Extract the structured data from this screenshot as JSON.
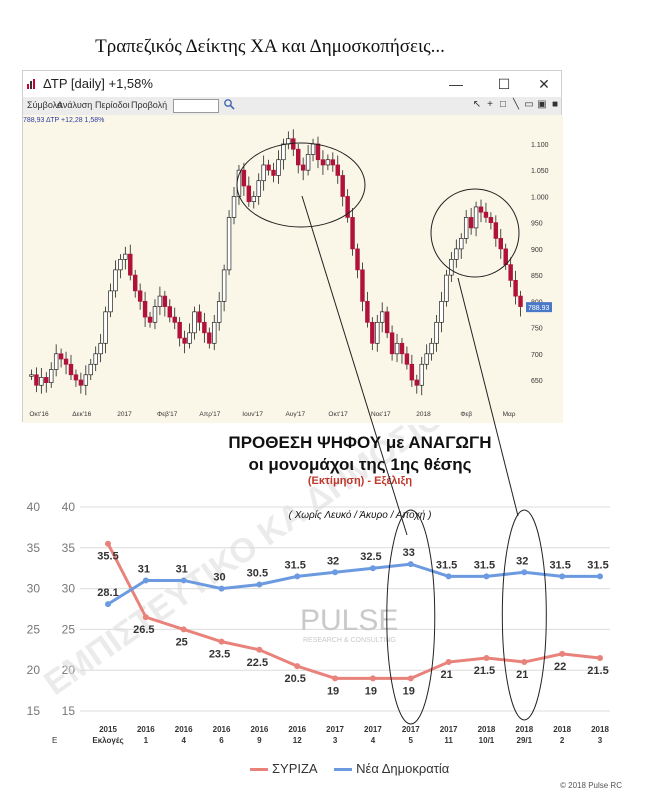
{
  "heading": "Τραπεζικός Δείκτης ΧΑ και Δημοσκοπήσεις...",
  "window": {
    "title": "ΔΤΡ [daily] +1,58%",
    "minimize": "—",
    "maximize": "☐",
    "close": "✕"
  },
  "menu": {
    "items": [
      "Σύμβολα",
      "Ανάλυση",
      "Περίοδοι",
      "Προβολή"
    ]
  },
  "readout": "788,93 ΔΤΡ +12,28 1,58%",
  "price_badge": "788.93",
  "chart_data": [
    {
      "type": "candlestick",
      "title": "ΔΤΡ [daily] +1,58%",
      "y_ticks": [
        650,
        700,
        750,
        800,
        850,
        900,
        950,
        1000,
        1050,
        1100
      ],
      "y_tick_labels": [
        "650",
        "700",
        "750",
        "800",
        "850",
        "900",
        "950",
        "1.000",
        "1.050",
        "1.100"
      ],
      "ylim": [
        610,
        1140
      ],
      "x_labels": [
        "Οκτ'16",
        "Δεκ'16",
        "2017",
        "Φεβ'17",
        "Απρ'17",
        "Ιουν'17",
        "Αυγ'17",
        "Οκτ'17",
        "Νοε'17",
        "2018",
        "Φεβ",
        "Μαρ"
      ],
      "last_value": 788.93,
      "closes": [
        660,
        640,
        655,
        645,
        670,
        700,
        690,
        680,
        660,
        650,
        640,
        660,
        680,
        700,
        720,
        780,
        820,
        860,
        880,
        890,
        850,
        820,
        800,
        770,
        760,
        790,
        810,
        790,
        770,
        760,
        730,
        720,
        740,
        780,
        760,
        740,
        720,
        760,
        800,
        860,
        960,
        1000,
        1050,
        1020,
        990,
        1000,
        1030,
        1060,
        1050,
        1040,
        1070,
        1100,
        1110,
        1090,
        1060,
        1050,
        1080,
        1100,
        1070,
        1060,
        1070,
        1060,
        1040,
        1000,
        960,
        900,
        860,
        800,
        760,
        720,
        760,
        780,
        740,
        700,
        720,
        700,
        680,
        650,
        640,
        680,
        700,
        720,
        760,
        800,
        850,
        880,
        900,
        920,
        960,
        940,
        980,
        970,
        960,
        950,
        920,
        900,
        870,
        840,
        810,
        790
      ]
    },
    {
      "type": "line",
      "title": "ΠΡΟΘΕΣΗ ΨΗΦΟΥ με ΑΝΑΓΩΓΗ",
      "subtitle": "οι μονομάχοι της 1ης θέσης",
      "subtitle2": "(Εκτίμηση) - Εξέλιξη",
      "note": "( Χωρίς Λευκό / Άκυρο / Αποχή )",
      "categories": [
        [
          "2015",
          "Εκλογές"
        ],
        [
          "2016",
          "1"
        ],
        [
          "2016",
          "4"
        ],
        [
          "2016",
          "6"
        ],
        [
          "2016",
          "9"
        ],
        [
          "2016",
          "12"
        ],
        [
          "2017",
          "3"
        ],
        [
          "2017",
          "4"
        ],
        [
          "2017",
          "5"
        ],
        [
          "2017",
          "11"
        ],
        [
          "2018",
          "10/1"
        ],
        [
          "2018",
          "29/1"
        ],
        [
          "2018",
          "2"
        ],
        [
          "2018",
          "3"
        ]
      ],
      "ylim": [
        15,
        40
      ],
      "y_ticks": [
        15,
        20,
        25,
        30,
        35,
        40
      ],
      "series": [
        {
          "name": "ΣΥΡΙΖΑ",
          "color": "#e8827a",
          "values": [
            35.5,
            26.5,
            25,
            23.5,
            22.5,
            20.5,
            19,
            19,
            19,
            21,
            21.5,
            21,
            22,
            21.5
          ]
        },
        {
          "name": "Νέα Δημοκρατία",
          "color": "#6c9ae0",
          "values": [
            28.1,
            31,
            31,
            30,
            30.5,
            31.5,
            32,
            32.5,
            33,
            31.5,
            31.5,
            32,
            31.5,
            31.5
          ]
        }
      ],
      "legend": [
        "ΣΥΡΙΖΑ",
        "Νέα Δημοκρατία"
      ],
      "grid": true
    }
  ],
  "copyright": "© 2018 Pulse RC",
  "watermark": "PULSE",
  "watermark_sub": "RESEARCH & CONSULTING",
  "watermark_text": "ΕΜΠΙΣΤΕΥΤΙΚΟ ΚΑ ΔΗΜΟΣΙΟΠ",
  "poll_axis_marker": "Ε"
}
